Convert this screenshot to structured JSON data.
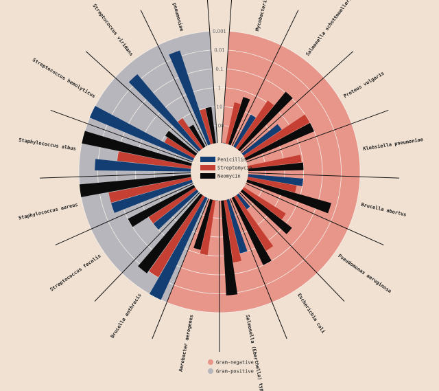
{
  "chart_data": {
    "type": "radial-bar",
    "title": "",
    "r_scale": "log",
    "r_ticks": [
      "0.001",
      "0.01",
      "0.1",
      "1",
      "10",
      "100"
    ],
    "drugs": [
      "Penicillin",
      "Streptomycin",
      "Neomycin"
    ],
    "colors": {
      "Penicillin": "#123e74",
      "Streptomycin": "#c53f32",
      "Neomycin": "#0b0b0b",
      "negative": "#e8968a",
      "positive": "#b7b6bc",
      "background": "#f0e1d2"
    },
    "groups": [
      {
        "name": "Gram-negative",
        "color_key": "negative"
      },
      {
        "name": "Gram-positive",
        "color_key": "positive"
      }
    ],
    "bacteria": [
      {
        "name": "Mycobacterium tuberculosis",
        "gram": "negative",
        "penicillin": 800,
        "streptomycin": 5,
        "neomycin": 2
      },
      {
        "name": "Salmonella schottmuelleri",
        "gram": "negative",
        "penicillin": 10,
        "streptomycin": 0.8,
        "neomycin": 0.09
      },
      {
        "name": "Proteus vulgaris",
        "gram": "negative",
        "penicillin": 3,
        "streptomycin": 0.1,
        "neomycin": 0.1
      },
      {
        "name": "Klebsiella pneumoniae",
        "gram": "negative",
        "penicillin": 850,
        "streptomycin": 1.2,
        "neomycin": 1
      },
      {
        "name": "Brucella abortus",
        "gram": "negative",
        "penicillin": 1,
        "streptomycin": 2,
        "neomycin": 0.02
      },
      {
        "name": "Pseudomonas aeruginosa",
        "gram": "negative",
        "penicillin": 850,
        "streptomycin": 2,
        "neomycin": 0.4
      },
      {
        "name": "Escherichia coli",
        "gram": "negative",
        "penicillin": 100,
        "streptomycin": 0.4,
        "neomycin": 0.1
      },
      {
        "name": "Salmonella (Eberthella) typhosa",
        "gram": "negative",
        "penicillin": 1,
        "streptomycin": 0.4,
        "neomycin": 0.008
      },
      {
        "name": "Aerobacter aerogenes",
        "gram": "negative",
        "penicillin": 870,
        "streptomycin": 1,
        "neomycin": 1.6
      },
      {
        "name": "Brucella anthracis",
        "gram": "positive",
        "penicillin": 0.001,
        "streptomycin": 0.01,
        "neomycin": 0.007
      },
      {
        "name": "Streptococcus fecalis",
        "gram": "positive",
        "penicillin": 1,
        "streptomycin": 1,
        "neomycin": 0.1
      },
      {
        "name": "Staphylococcus aureus",
        "gram": "positive",
        "penicillin": 0.03,
        "streptomycin": 0.03,
        "neomycin": 0.001
      },
      {
        "name": "Staphylococcus albus",
        "gram": "positive",
        "penicillin": 0.007,
        "streptomycin": 0.1,
        "neomycin": 0.001
      },
      {
        "name": "Streptococcus hemolyticus",
        "gram": "positive",
        "penicillin": 0.001,
        "streptomycin": 14,
        "neomycin": 10
      },
      {
        "name": "Streptococcus viridans",
        "gram": "positive",
        "penicillin": 0.005,
        "streptomycin": 10,
        "neomycin": 40
      },
      {
        "name": "Diplococcus pneumoniae",
        "gram": "positive",
        "penicillin": 0.005,
        "streptomycin": 11,
        "neomycin": 10
      }
    ]
  }
}
